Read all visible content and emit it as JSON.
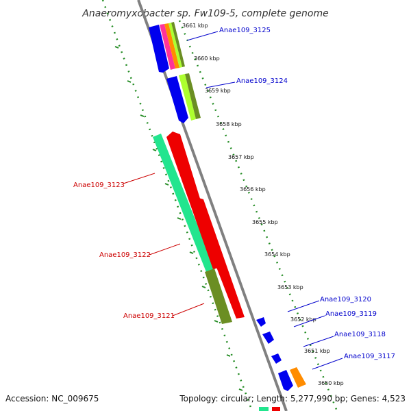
{
  "title": "Anaeromyxobacter sp. Fw109-5, complete genome",
  "accession": "Accession: NC_009675",
  "topology": "Topology: circular; Length: 5,277,990 bp; Genes: 4,523",
  "colors": {
    "backbone": "#808080",
    "dots": "#228b22",
    "label_blue": "#0000cc",
    "label_red": "#cc0000",
    "gene_blue": "#0000ee",
    "gene_red": "#ee0000",
    "gene_aqua": "#22e58e",
    "gene_olive": "#6b8e23",
    "gene_lime": "#adff2f",
    "gene_orange": "#ff8c00"
  },
  "ticks": [
    "3661 kbp",
    "3660 kbp",
    "3659 kbp",
    "3658 kbp",
    "3657 kbp",
    "3656 kbp",
    "3655 kbp",
    "3654 kbp",
    "3653 kbp",
    "3652 kbp",
    "3651 kbp",
    "3650 kbp"
  ],
  "gene_labels": [
    {
      "text": "Anae109_3125",
      "strand": "plus"
    },
    {
      "text": "Anae109_3124",
      "strand": "plus"
    },
    {
      "text": "Anae109_3123",
      "strand": "minus"
    },
    {
      "text": "Anae109_3122",
      "strand": "minus"
    },
    {
      "text": "Anae109_3121",
      "strand": "minus"
    },
    {
      "text": "Anae109_3120",
      "strand": "plus"
    },
    {
      "text": "Anae109_3119",
      "strand": "plus"
    },
    {
      "text": "Anae109_3118",
      "strand": "plus"
    },
    {
      "text": "Anae109_3117",
      "strand": "plus"
    }
  ]
}
